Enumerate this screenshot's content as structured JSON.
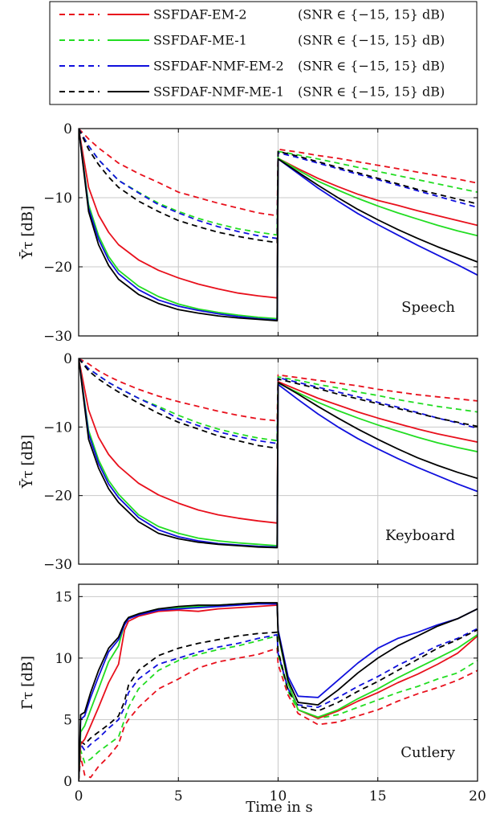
{
  "chart_data": {
    "type": "line",
    "xlabel": "Time in s",
    "xlim": [
      0,
      20
    ],
    "xticks": [
      0,
      5,
      10,
      15,
      20
    ],
    "grid": true,
    "legend": {
      "placement": "top",
      "entries": [
        {
          "name": "SSFDAF-EM-2",
          "condition": "(SNR ∈ {−15, 15} dB)",
          "color": "#e8101c"
        },
        {
          "name": "SSFDAF-ME-1",
          "condition": "(SNR ∈ {−15, 15} dB)",
          "color": "#22dd22"
        },
        {
          "name": "SSFDAF-NMF-EM-2",
          "condition": "(SNR ∈ {−15, 15} dB)",
          "color": "#1010dd"
        },
        {
          "name": "SSFDAF-NMF-ME-1",
          "condition": "(SNR ∈ {−15, 15} dB)",
          "color": "#000000"
        }
      ],
      "style_note": "dashed and solid"
    },
    "panels": [
      {
        "label": "Speech",
        "ylabel": "Ῡτ [dB]",
        "ylim": [
          -30,
          0
        ],
        "yticks": [
          0,
          -10,
          -20,
          -30
        ],
        "x": [
          0,
          0.5,
          1,
          1.5,
          2,
          3,
          4,
          5,
          6,
          7,
          8,
          9,
          9.95,
          10,
          11,
          12,
          13,
          14,
          15,
          16,
          17,
          18,
          19,
          20
        ],
        "series": [
          {
            "name": "SSFDAF-EM-2",
            "line": "dashed",
            "color": "#e8101c",
            "values": [
              0,
              -1.5,
              -2.8,
              -3.9,
              -5,
              -6.5,
              -7.8,
              -9.2,
              -10,
              -10.8,
              -11.5,
              -12.2,
              -12.6,
              -3.0,
              -3.4,
              -3.9,
              -4.3,
              -4.8,
              -5.3,
              -5.8,
              -6.3,
              -6.8,
              -7.3,
              -7.9
            ]
          },
          {
            "name": "SSFDAF-ME-1",
            "line": "dashed",
            "color": "#22dd22",
            "values": [
              0,
              -2.5,
              -4.5,
              -6,
              -7.5,
              -9.2,
              -10.8,
              -12,
              -13,
              -13.8,
              -14.5,
              -15,
              -15.4,
              -3.3,
              -3.8,
              -4.4,
              -5,
              -5.6,
              -6.2,
              -6.8,
              -7.4,
              -8,
              -8.6,
              -9.2
            ]
          },
          {
            "name": "SSFDAF-NMF-EM-2",
            "line": "dashed",
            "color": "#1010dd",
            "values": [
              0,
              -2.5,
              -4.5,
              -6,
              -7.5,
              -9.3,
              -11,
              -12.2,
              -13.3,
              -14.2,
              -14.9,
              -15.5,
              -15.9,
              -3.5,
              -4.2,
              -5,
              -5.8,
              -6.6,
              -7.4,
              -8.2,
              -9,
              -9.8,
              -10.6,
              -11.4
            ]
          },
          {
            "name": "SSFDAF-NMF-ME-1",
            "line": "dashed",
            "color": "#000000",
            "values": [
              0,
              -3,
              -5.2,
              -7,
              -8.5,
              -10.5,
              -12,
              -13.3,
              -14.2,
              -15,
              -15.6,
              -16.1,
              -16.5,
              -3.3,
              -4,
              -4.8,
              -5.6,
              -6.4,
              -7.2,
              -8,
              -8.8,
              -9.5,
              -10.2,
              -10.9
            ]
          },
          {
            "name": "SSFDAF-EM-2",
            "line": "solid",
            "color": "#e8101c",
            "values": [
              0,
              -8.5,
              -12.5,
              -15,
              -16.8,
              -19,
              -20.5,
              -21.6,
              -22.5,
              -23.2,
              -23.8,
              -24.2,
              -24.5,
              -4.3,
              -5.8,
              -7.2,
              -8.4,
              -9.5,
              -10.4,
              -11.1,
              -11.9,
              -12.6,
              -13.3,
              -14
            ]
          },
          {
            "name": "SSFDAF-ME-1",
            "line": "solid",
            "color": "#22dd22",
            "values": [
              0,
              -11,
              -15.5,
              -18.5,
              -20.5,
              -22.8,
              -24.3,
              -25.4,
              -26.1,
              -26.6,
              -27,
              -27.3,
              -27.5,
              -4.3,
              -6,
              -7.6,
              -8.9,
              -10.1,
              -11.2,
              -12.2,
              -13.1,
              -14,
              -14.8,
              -15.5
            ]
          },
          {
            "name": "SSFDAF-NMF-EM-2",
            "line": "solid",
            "color": "#1010dd",
            "values": [
              0,
              -11.5,
              -16,
              -19,
              -21,
              -23.3,
              -24.8,
              -25.7,
              -26.3,
              -26.8,
              -27.2,
              -27.5,
              -27.7,
              -4.4,
              -6.5,
              -8.6,
              -10.5,
              -12.3,
              -13.9,
              -15.4,
              -16.9,
              -18.3,
              -19.7,
              -21.2
            ]
          },
          {
            "name": "SSFDAF-NMF-ME-1",
            "line": "solid",
            "color": "#000000",
            "values": [
              0,
              -12,
              -16.8,
              -19.8,
              -21.8,
              -24,
              -25.3,
              -26.2,
              -26.7,
              -27.1,
              -27.4,
              -27.6,
              -27.8,
              -4.4,
              -6.3,
              -8.2,
              -10,
              -11.7,
              -13.2,
              -14.6,
              -15.9,
              -17.1,
              -18.2,
              -19.3
            ]
          }
        ]
      },
      {
        "label": "Keyboard",
        "ylabel": "Ῡτ [dB]",
        "ylim": [
          -30,
          0
        ],
        "yticks": [
          0,
          -10,
          -20,
          -30
        ],
        "x": [
          0,
          0.5,
          1,
          1.5,
          2,
          3,
          4,
          5,
          6,
          7,
          8,
          9,
          9.95,
          10,
          11,
          12,
          13,
          14,
          15,
          16,
          17,
          18,
          19,
          20
        ],
        "series": [
          {
            "name": "SSFDAF-EM-2",
            "line": "dashed",
            "color": "#e8101c",
            "values": [
              0,
              -0.8,
              -1.8,
              -2.6,
              -3.3,
              -4.5,
              -5.5,
              -6.3,
              -7,
              -7.7,
              -8.3,
              -8.8,
              -9.1,
              -2.4,
              -2.8,
              -3.2,
              -3.6,
              -4,
              -4.5,
              -4.9,
              -5.3,
              -5.6,
              -5.9,
              -6.2
            ]
          },
          {
            "name": "SSFDAF-ME-1",
            "line": "dashed",
            "color": "#22dd22",
            "values": [
              0,
              -1.5,
              -2.5,
              -3.5,
              -4.3,
              -5.8,
              -7,
              -8.3,
              -9.4,
              -10.3,
              -11,
              -11.6,
              -12,
              -2.7,
              -3.2,
              -3.8,
              -4.3,
              -4.9,
              -5.4,
              -6,
              -6.5,
              -7,
              -7.4,
              -7.8
            ]
          },
          {
            "name": "SSFDAF-NMF-EM-2",
            "line": "dashed",
            "color": "#1010dd",
            "values": [
              0,
              -1.5,
              -2.5,
              -3.5,
              -4.3,
              -5.8,
              -7.2,
              -8.8,
              -9.8,
              -10.7,
              -11.4,
              -12,
              -12.4,
              -2.8,
              -3.5,
              -4.2,
              -4.9,
              -5.6,
              -6.4,
              -7.1,
              -7.9,
              -8.7,
              -9.4,
              -10.2
            ]
          },
          {
            "name": "SSFDAF-NMF-ME-1",
            "line": "dashed",
            "color": "#000000",
            "values": [
              0,
              -1.8,
              -3,
              -4,
              -4.9,
              -6.5,
              -8,
              -9.3,
              -10.3,
              -11.3,
              -12,
              -12.7,
              -13.1,
              -3,
              -3.7,
              -4.4,
              -5.2,
              -5.9,
              -6.6,
              -7.3,
              -8,
              -8.7,
              -9.3,
              -9.9
            ]
          },
          {
            "name": "SSFDAF-EM-2",
            "line": "solid",
            "color": "#e8101c",
            "values": [
              0,
              -7.5,
              -11.5,
              -14,
              -15.7,
              -18.2,
              -19.9,
              -21.1,
              -22.1,
              -22.8,
              -23.3,
              -23.7,
              -24,
              -3.4,
              -4.6,
              -5.8,
              -6.8,
              -7.8,
              -8.7,
              -9.5,
              -10.3,
              -11,
              -11.6,
              -12.2
            ]
          },
          {
            "name": "SSFDAF-ME-1",
            "line": "solid",
            "color": "#22dd22",
            "values": [
              0,
              -10.5,
              -14.8,
              -17.8,
              -19.8,
              -22.8,
              -24.5,
              -25.5,
              -26.2,
              -26.6,
              -26.9,
              -27.1,
              -27.3,
              -3.6,
              -5,
              -6.4,
              -7.6,
              -8.7,
              -9.7,
              -10.6,
              -11.5,
              -12.3,
              -13,
              -13.6
            ]
          },
          {
            "name": "SSFDAF-NMF-EM-2",
            "line": "solid",
            "color": "#1010dd",
            "values": [
              0,
              -11,
              -15.3,
              -18.3,
              -20.3,
              -23.2,
              -25,
              -26,
              -26.6,
              -27,
              -27.2,
              -27.4,
              -27.5,
              -3.8,
              -6,
              -8.1,
              -10,
              -11.7,
              -13.2,
              -14.6,
              -15.9,
              -17.1,
              -18.3,
              -19.4
            ]
          },
          {
            "name": "SSFDAF-NMF-ME-1",
            "line": "solid",
            "color": "#000000",
            "values": [
              0,
              -11.8,
              -16,
              -19,
              -21,
              -23.8,
              -25.5,
              -26.3,
              -26.8,
              -27.1,
              -27.3,
              -27.5,
              -27.6,
              -3.5,
              -5.2,
              -7,
              -8.7,
              -10.3,
              -11.8,
              -13.2,
              -14.5,
              -15.6,
              -16.6,
              -17.5
            ]
          }
        ]
      },
      {
        "label": "Cutlery",
        "ylabel": "Γ̄τ [dB]",
        "ylim": [
          0,
          16
        ],
        "yticks": [
          0,
          5,
          10,
          15
        ],
        "x": [
          0,
          0.1,
          0.3,
          0.6,
          1,
          1.5,
          2,
          2.3,
          2.5,
          3,
          4,
          5,
          6,
          7,
          8,
          9,
          9.95,
          10,
          10.5,
          11,
          12,
          13,
          14,
          15,
          16,
          17,
          18,
          19,
          20
        ],
        "series": [
          {
            "name": "SSFDAF-EM-2",
            "line": "dashed",
            "color": "#e8101c",
            "values": [
              0,
              2,
              0.5,
              0.3,
              1.2,
              2,
              3,
              4.5,
              5,
              6,
              7.5,
              8.3,
              9.2,
              9.7,
              10,
              10.3,
              10.8,
              9.5,
              7,
              5.5,
              4.6,
              4.8,
              5.3,
              5.8,
              6.5,
              7.1,
              7.6,
              8.2,
              9
            ]
          },
          {
            "name": "SSFDAF-ME-1",
            "line": "dashed",
            "color": "#22dd22",
            "values": [
              0,
              2.5,
              1.5,
              1.8,
              2.4,
              3,
              3.6,
              5,
              6,
              7.5,
              9,
              9.8,
              10.3,
              10.7,
              11,
              11.4,
              11.8,
              10.3,
              7.3,
              5.8,
              5.1,
              5.4,
              6,
              6.6,
              7.2,
              7.7,
              8.3,
              8.8,
              9.8
            ]
          },
          {
            "name": "SSFDAF-NMF-EM-2",
            "line": "dashed",
            "color": "#1010dd",
            "values": [
              0,
              3,
              2.5,
              3,
              3.5,
              4.3,
              5,
              6,
              7.2,
              8.3,
              9.5,
              10,
              10.5,
              10.9,
              11.2,
              11.6,
              11.9,
              10.4,
              7.5,
              6.2,
              6,
              6.8,
              7.7,
              8.5,
              9.4,
              10.2,
              11,
              11.6,
              12.4
            ]
          },
          {
            "name": "SSFDAF-NMF-ME-1",
            "line": "dashed",
            "color": "#000000",
            "values": [
              0,
              3.2,
              3,
              3.5,
              4,
              4.6,
              5.3,
              6.5,
              7.8,
              9,
              10.2,
              10.8,
              11.2,
              11.5,
              11.8,
              12,
              12.1,
              10.6,
              7.4,
              6.1,
              5.7,
              6.4,
              7.3,
              8.1,
              9,
              9.9,
              10.8,
              11.5,
              12.3
            ]
          },
          {
            "name": "SSFDAF-EM-2",
            "line": "solid",
            "color": "#e8101c",
            "values": [
              0,
              3,
              3.4,
              4.5,
              6,
              8,
              9.5,
              12.3,
              13,
              13.4,
              13.8,
              13.9,
              13.8,
              14,
              14.1,
              14.2,
              14.3,
              12,
              8,
              5.8,
              5.1,
              5.7,
              6.5,
              7.2,
              8,
              8.7,
              9.5,
              10.4,
              11.8
            ]
          },
          {
            "name": "SSFDAF-ME-1",
            "line": "solid",
            "color": "#22dd22",
            "values": [
              0,
              4,
              4.5,
              5.8,
              7.5,
              9.7,
              11,
              12.8,
              13.3,
              13.6,
              14,
              14.1,
              14.2,
              14.3,
              14.4,
              14.5,
              14.4,
              12,
              8,
              5.8,
              5.2,
              5.8,
              6.7,
              7.5,
              8.4,
              9.2,
              10,
              10.8,
              11.9
            ]
          },
          {
            "name": "SSFDAF-NMF-EM-2",
            "line": "solid",
            "color": "#1010dd",
            "values": [
              0,
              5,
              5.3,
              6.8,
              8.5,
              10.5,
              11.5,
              12.7,
              13.2,
              13.5,
              13.9,
              14,
              14.1,
              14.2,
              14.3,
              14.4,
              14.4,
              12.3,
              8.5,
              6.9,
              6.8,
              8.2,
              9.6,
              10.8,
              11.6,
              12.1,
              12.7,
              13.2,
              14
            ]
          },
          {
            "name": "SSFDAF-NMF-ME-1",
            "line": "solid",
            "color": "#000000",
            "values": [
              0,
              5.4,
              5.6,
              7.2,
              9,
              10.8,
              11.7,
              12.9,
              13.3,
              13.6,
              14,
              14.2,
              14.3,
              14.3,
              14.4,
              14.5,
              14.5,
              12.1,
              8.2,
              6.4,
              6.2,
              7.4,
              8.8,
              10,
              11,
              11.8,
              12.6,
              13.2,
              14
            ]
          }
        ]
      }
    ]
  }
}
